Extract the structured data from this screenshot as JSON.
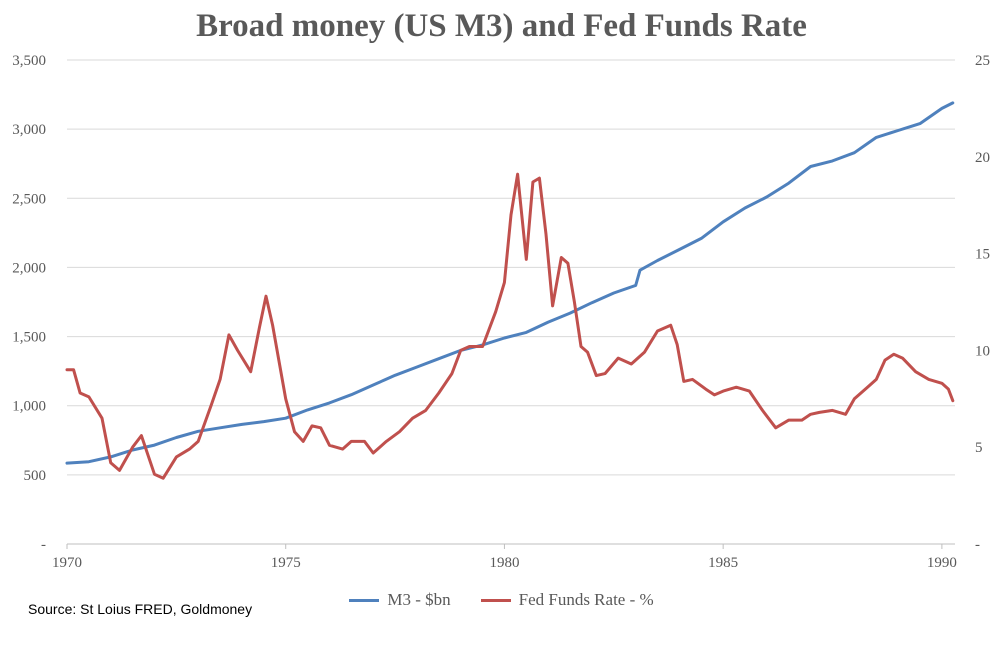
{
  "chart_data": {
    "type": "line",
    "title": "Broad money (US M3) and Fed Funds Rate",
    "x_ticks": [
      "1970",
      "1975",
      "1980",
      "1985",
      "1990"
    ],
    "xlim": [
      1970,
      1990.3
    ],
    "y_left": {
      "ticks": [
        "-",
        "500",
        "1,000",
        "1,500",
        "2,000",
        "2,500",
        "3,000",
        "3,500"
      ],
      "lim": [
        0,
        3500
      ]
    },
    "y_right": {
      "ticks": [
        "-",
        "5",
        "10",
        "15",
        "20",
        "25"
      ],
      "lim": [
        0,
        25
      ]
    },
    "grid": true,
    "legend_position": "bottom",
    "series": [
      {
        "name": "M3 - $bn",
        "axis": "left",
        "color": "#4F81BD",
        "x": [
          1970,
          1970.5,
          1971,
          1971.5,
          1972,
          1972.5,
          1973,
          1973.5,
          1974,
          1974.5,
          1975,
          1975.5,
          1976,
          1976.5,
          1977,
          1977.5,
          1978,
          1978.5,
          1979,
          1979.5,
          1980,
          1980.5,
          1981,
          1981.5,
          1982,
          1982.5,
          1983,
          1983.1,
          1983.5,
          1984,
          1984.5,
          1985,
          1985.5,
          1986,
          1986.5,
          1987,
          1987.5,
          1988,
          1988.5,
          1989,
          1989.5,
          1990,
          1990.25
        ],
        "values": [
          585,
          595,
          630,
          680,
          715,
          770,
          815,
          840,
          865,
          885,
          910,
          970,
          1020,
          1080,
          1150,
          1220,
          1280,
          1340,
          1400,
          1440,
          1490,
          1530,
          1605,
          1670,
          1745,
          1815,
          1870,
          1980,
          2050,
          2130,
          2210,
          2330,
          2430,
          2510,
          2610,
          2730,
          2770,
          2830,
          2940,
          2990,
          3040,
          3150,
          3190
        ]
      },
      {
        "name": "Fed Funds Rate - %",
        "axis": "right",
        "color": "#C0504D",
        "x": [
          1970,
          1970.15,
          1970.3,
          1970.5,
          1970.8,
          1971,
          1971.2,
          1971.5,
          1971.7,
          1972,
          1972.2,
          1972.5,
          1972.8,
          1973,
          1973.3,
          1973.5,
          1973.7,
          1973.9,
          1974.2,
          1974.4,
          1974.55,
          1974.7,
          1975,
          1975.2,
          1975.4,
          1975.6,
          1975.8,
          1976,
          1976.3,
          1976.5,
          1976.8,
          1977,
          1977.3,
          1977.6,
          1977.9,
          1978.2,
          1978.5,
          1978.8,
          1979,
          1979.2,
          1979.5,
          1979.8,
          1980,
          1980.15,
          1980.3,
          1980.5,
          1980.65,
          1980.8,
          1980.95,
          1981.1,
          1981.3,
          1981.45,
          1981.6,
          1981.75,
          1981.9,
          1982.1,
          1982.3,
          1982.6,
          1982.9,
          1983.2,
          1983.5,
          1983.8,
          1983.95,
          1984.1,
          1984.3,
          1984.6,
          1984.8,
          1985,
          1985.3,
          1985.6,
          1985.9,
          1986.2,
          1986.5,
          1986.8,
          1987,
          1987.2,
          1987.5,
          1987.8,
          1988,
          1988.3,
          1988.5,
          1988.7,
          1988.9,
          1989.1,
          1989.4,
          1989.7,
          1990,
          1990.15,
          1990.25
        ],
        "values": [
          9.0,
          9.0,
          7.8,
          7.6,
          6.5,
          4.2,
          3.8,
          5.0,
          5.6,
          3.6,
          3.4,
          4.5,
          4.9,
          5.3,
          7.2,
          8.5,
          10.8,
          10.0,
          8.9,
          11.2,
          12.8,
          11.3,
          7.5,
          5.8,
          5.3,
          6.1,
          6.0,
          5.1,
          4.9,
          5.3,
          5.3,
          4.7,
          5.3,
          5.8,
          6.5,
          6.9,
          7.8,
          8.8,
          10.0,
          10.2,
          10.2,
          12.0,
          13.5,
          17.0,
          19.1,
          14.7,
          18.7,
          18.9,
          16.0,
          12.3,
          14.8,
          14.5,
          12.5,
          10.2,
          9.9,
          8.7,
          8.8,
          9.6,
          9.3,
          9.9,
          11.0,
          11.3,
          10.3,
          8.4,
          8.5,
          8.0,
          7.7,
          7.9,
          8.1,
          7.9,
          6.9,
          6.0,
          6.4,
          6.4,
          6.7,
          6.8,
          6.9,
          6.7,
          7.5,
          8.1,
          8.5,
          9.5,
          9.8,
          9.6,
          8.9,
          8.5,
          8.3,
          8.0,
          7.4
        ]
      }
    ]
  },
  "source": "Source: St Loius FRED, Goldmoney"
}
